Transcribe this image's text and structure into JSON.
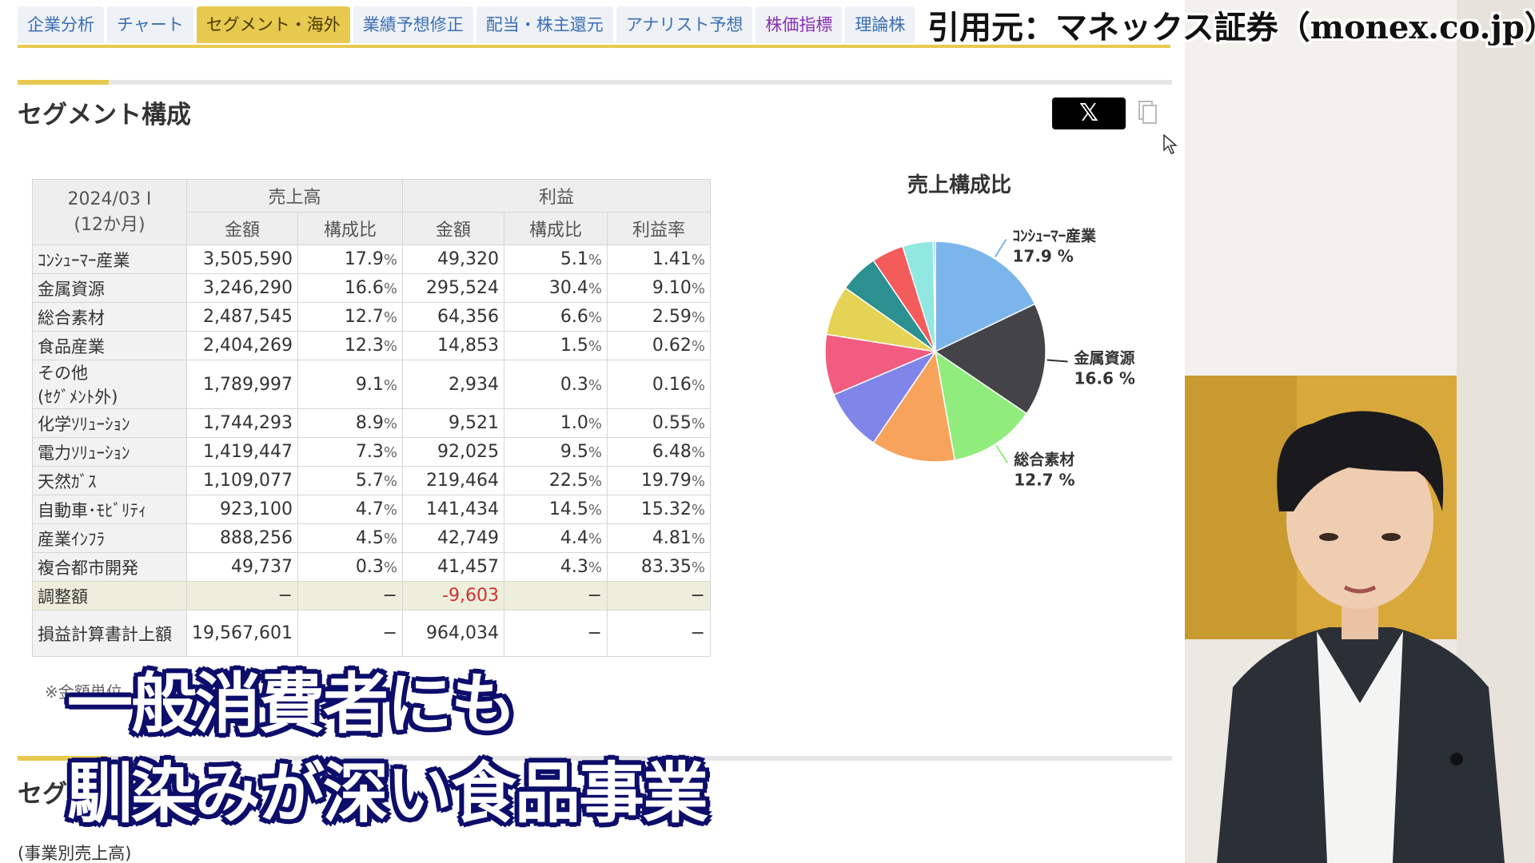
{
  "credit": "引用元：マネックス証券（monex.co.jp）",
  "tabs": [
    {
      "label": "企業分析"
    },
    {
      "label": "チャート"
    },
    {
      "label": "セグメント・海外"
    },
    {
      "label": "業績予想修正"
    },
    {
      "label": "配当・株主還元"
    },
    {
      "label": "アナリスト予想"
    },
    {
      "label": "株価指標"
    },
    {
      "label": "理論株"
    }
  ],
  "section": {
    "title": "セグメント構成",
    "x_label": "𝕏",
    "footnote": "※金額単位"
  },
  "table": {
    "period_line1": "2024/03 I",
    "period_line2": "(12か月)",
    "group_sales": "売上高",
    "group_profit": "利益",
    "col_amount": "金額",
    "col_ratio": "構成比",
    "col_amount2": "金額",
    "col_ratio2": "構成比",
    "col_margin": "利益率",
    "rows": [
      {
        "name": "ｺﾝｼｭｰﾏｰ産業",
        "sales": "3,505,590",
        "share": "17.9",
        "profit": "49,320",
        "pshare": "5.1",
        "margin": "1.41"
      },
      {
        "name": "金属資源",
        "sales": "3,246,290",
        "share": "16.6",
        "profit": "295,524",
        "pshare": "30.4",
        "margin": "9.10"
      },
      {
        "name": "総合素材",
        "sales": "2,487,545",
        "share": "12.7",
        "profit": "64,356",
        "pshare": "6.6",
        "margin": "2.59"
      },
      {
        "name": "食品産業",
        "sales": "2,404,269",
        "share": "12.3",
        "profit": "14,853",
        "pshare": "1.5",
        "margin": "0.62"
      },
      {
        "name": "その他",
        "name2": "(ｾｸﾞﾒﾝﾄ外)",
        "sales": "1,789,997",
        "share": "9.1",
        "profit": "2,934",
        "pshare": "0.3",
        "margin": "0.16"
      },
      {
        "name": "化学ｿﾘｭｰｼｮﾝ",
        "sales": "1,744,293",
        "share": "8.9",
        "profit": "9,521",
        "pshare": "1.0",
        "margin": "0.55"
      },
      {
        "name": "電力ｿﾘｭｰｼｮﾝ",
        "sales": "1,419,447",
        "share": "7.3",
        "profit": "92,025",
        "pshare": "9.5",
        "margin": "6.48"
      },
      {
        "name": "天然ｶﾞｽ",
        "sales": "1,109,077",
        "share": "5.7",
        "profit": "219,464",
        "pshare": "22.5",
        "margin": "19.79"
      },
      {
        "name": "自動車･ﾓﾋﾞﾘﾃｨ",
        "sales": "923,100",
        "share": "4.7",
        "profit": "141,434",
        "pshare": "14.5",
        "margin": "15.32"
      },
      {
        "name": "産業ｲﾝﾌﾗ",
        "sales": "888,256",
        "share": "4.5",
        "profit": "42,749",
        "pshare": "4.4",
        "margin": "4.81"
      },
      {
        "name": "複合都市開発",
        "sales": "49,737",
        "share": "0.3",
        "profit": "41,457",
        "pshare": "4.3",
        "margin": "83.35"
      }
    ],
    "adjustment": {
      "name": "調整額",
      "sales": "−",
      "share": "−",
      "profit": "-9,603",
      "pshare": "−",
      "margin": "−"
    },
    "total": {
      "name": "損益計算書計上額",
      "sales": "19,567,601",
      "share": "−",
      "profit": "964,034",
      "pshare": "−",
      "margin": "−"
    },
    "pct_sign": "%"
  },
  "section2": {
    "title": "セグ",
    "subtitle": "(事業別売上高)"
  },
  "caption": {
    "line1": "一般消費者にも",
    "line2": "馴染みが深い食品事業"
  },
  "chart_data": {
    "type": "pie",
    "title": "売上構成比",
    "categories": [
      "ｺﾝｼｭｰﾏｰ産業",
      "金属資源",
      "総合素材",
      "食品産業",
      "その他",
      "化学ｿﾘｭｰｼｮﾝ",
      "電力ｿﾘｭｰｼｮﾝ",
      "天然ｶﾞｽ",
      "自動車･ﾓﾋﾞﾘﾃｨ",
      "産業ｲﾝﾌﾗ",
      "複合都市開発"
    ],
    "values": [
      17.9,
      16.6,
      12.7,
      12.3,
      9.1,
      8.9,
      7.3,
      5.7,
      4.7,
      4.5,
      0.3
    ],
    "colors": [
      "#7cb5ec",
      "#434348",
      "#90ed7d",
      "#f7a35c",
      "#8085e9",
      "#f15c80",
      "#e4d354",
      "#2b908f",
      "#f45b5b",
      "#91e8e1",
      "#7cb5ec"
    ],
    "labels": [
      {
        "name": "ｺﾝｼｭｰﾏｰ産業",
        "value": "17.9 %"
      },
      {
        "name": "金属資源",
        "value": "16.6 %"
      },
      {
        "name": "総合素材",
        "value": "12.7 %"
      }
    ]
  }
}
